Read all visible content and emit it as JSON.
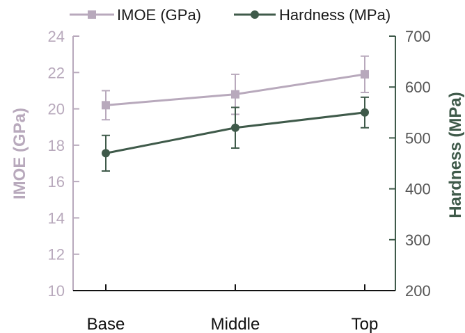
{
  "chart_data": {
    "type": "line",
    "categories": [
      "Base",
      "Middle",
      "Top"
    ],
    "series": [
      {
        "name": "IMOE (GPa)",
        "axis": "left",
        "color": "#b8a9bc",
        "marker": "square",
        "values": [
          20.2,
          20.8,
          21.9
        ],
        "error": [
          0.8,
          1.1,
          1.0
        ]
      },
      {
        "name": "Hardness (MPa)",
        "axis": "right",
        "color": "#3f5a4a",
        "marker": "circle",
        "values": [
          470,
          520,
          550
        ],
        "error": [
          35,
          40,
          30
        ]
      }
    ],
    "ylabel_left": "IMOE (GPa)",
    "ylabel_right": "Hardness (MPa)",
    "ylim_left": [
      10,
      24
    ],
    "yticks_left": [
      10,
      12,
      14,
      16,
      18,
      20,
      22,
      24
    ],
    "ylim_right": [
      200,
      700
    ],
    "yticks_right": [
      200,
      300,
      400,
      500,
      600,
      700
    ],
    "grid": false,
    "legend_position": "top",
    "colors": {
      "left_axis": "#b8a9bc",
      "right_axis": "#3f5a4a"
    }
  }
}
